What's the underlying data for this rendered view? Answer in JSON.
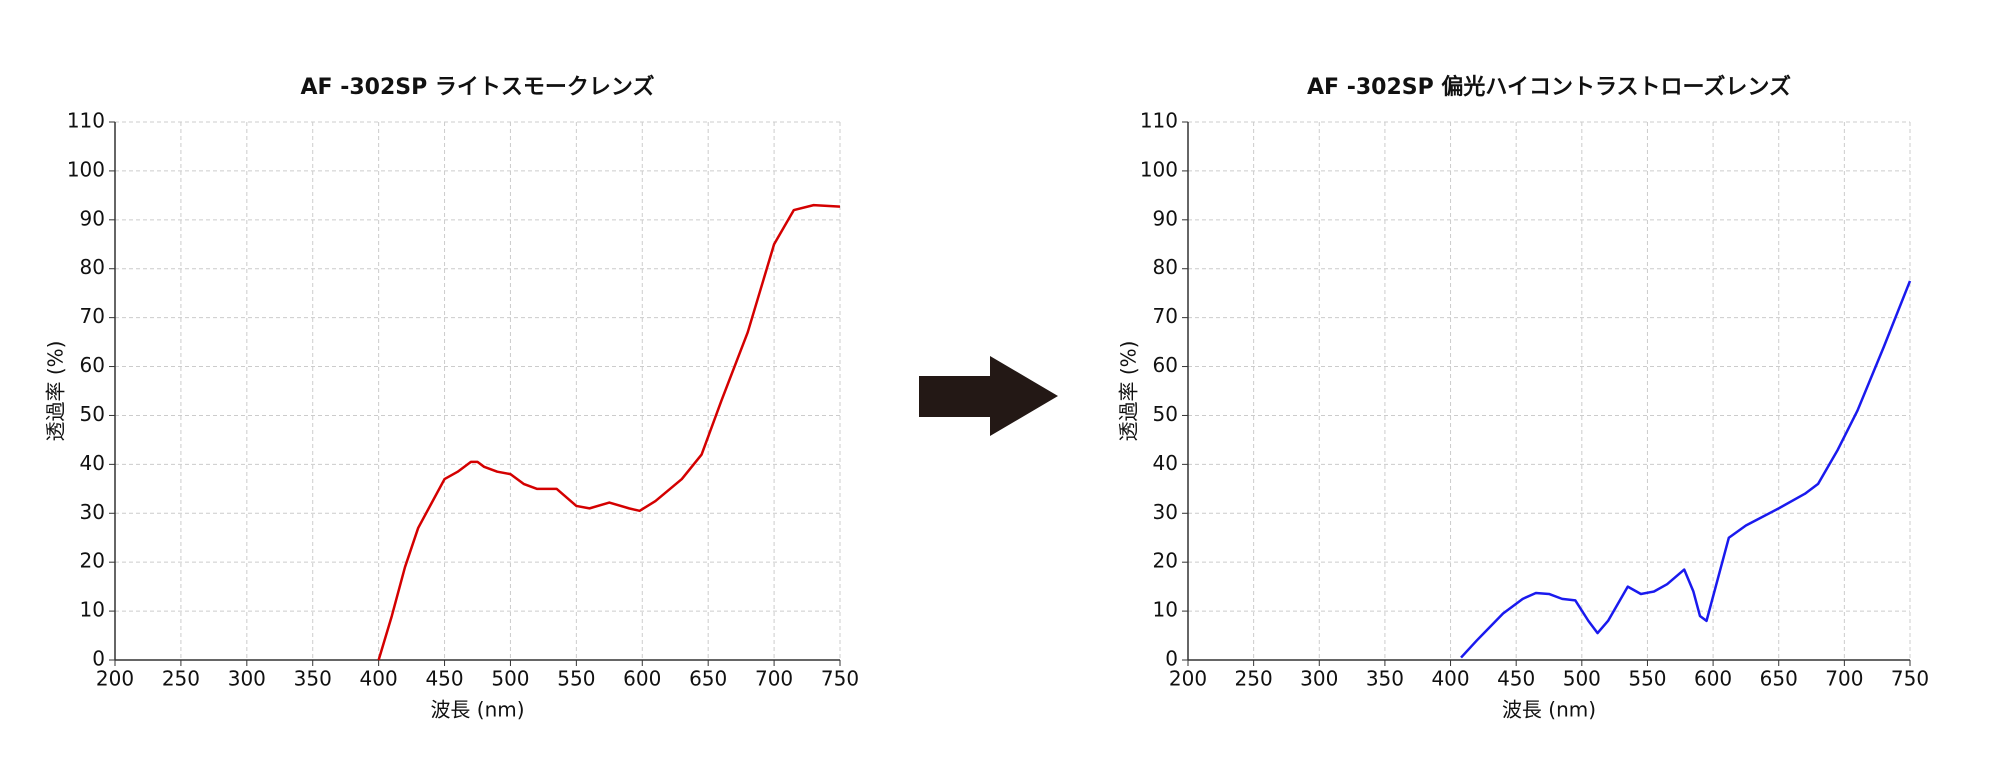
{
  "chart_data": [
    {
      "type": "line",
      "title": "AF -302SP ライトスモークレンズ",
      "x_label": "波長 (nm)",
      "y_label": "透過率 (%)",
      "xlim": [
        200,
        750
      ],
      "ylim": [
        0,
        110
      ],
      "xticks": [
        200,
        250,
        300,
        350,
        400,
        450,
        500,
        550,
        600,
        650,
        700,
        750
      ],
      "yticks": [
        0,
        10,
        20,
        30,
        40,
        50,
        60,
        70,
        80,
        90,
        100,
        110
      ],
      "grid": true,
      "series": [
        {
          "name": "AF -302SP ライトスモークレンズ",
          "color": "#d40000",
          "x": [
            400,
            410,
            420,
            430,
            440,
            450,
            460,
            470,
            475,
            480,
            490,
            500,
            510,
            520,
            535,
            550,
            560,
            575,
            590,
            598,
            610,
            630,
            645,
            660,
            680,
            700,
            715,
            730,
            750
          ],
          "values": [
            0,
            9,
            19,
            27,
            32,
            37,
            38.5,
            40.5,
            40.5,
            39.5,
            38.5,
            38,
            36,
            35,
            35,
            31.5,
            31,
            32.2,
            31,
            30.5,
            32.5,
            37,
            42,
            53,
            67,
            85,
            92,
            93,
            92.7
          ]
        }
      ]
    },
    {
      "type": "line",
      "title": "AF -302SP 偏光ハイコントラストローズレンズ",
      "x_label": "波長 (nm)",
      "y_label": "透過率 (%)",
      "xlim": [
        200,
        750
      ],
      "ylim": [
        0,
        110
      ],
      "xticks": [
        200,
        250,
        300,
        350,
        400,
        450,
        500,
        550,
        600,
        650,
        700,
        750
      ],
      "yticks": [
        0,
        10,
        20,
        30,
        40,
        50,
        60,
        70,
        80,
        90,
        100,
        110
      ],
      "grid": true,
      "series": [
        {
          "name": "AF -302SP 偏光ハイコントラストローズレンズ",
          "color": "#1a1aee",
          "x": [
            408,
            420,
            440,
            455,
            465,
            475,
            485,
            495,
            505,
            512,
            520,
            535,
            545,
            555,
            565,
            578,
            585,
            590,
            595,
            605,
            612,
            625,
            650,
            670,
            680,
            695,
            710,
            730,
            750
          ],
          "values": [
            0.5,
            4,
            9.5,
            12.5,
            13.7,
            13.5,
            12.5,
            12.2,
            8,
            5.5,
            8,
            15,
            13.5,
            14,
            15.5,
            18.5,
            14,
            9,
            8,
            18,
            25,
            27.5,
            31,
            34,
            36,
            43,
            51,
            64,
            77.5
          ]
        }
      ]
    }
  ]
}
